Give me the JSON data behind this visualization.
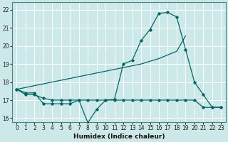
{
  "xlabel": "Humidex (Indice chaleur)",
  "background_color": "#cce8e8",
  "grid_color": "#ffffff",
  "line_color": "#006666",
  "xlim": [
    -0.5,
    23.5
  ],
  "ylim": [
    15.8,
    22.4
  ],
  "yticks": [
    16,
    17,
    18,
    19,
    20,
    21,
    22
  ],
  "xticks": [
    0,
    1,
    2,
    3,
    4,
    5,
    6,
    7,
    8,
    9,
    10,
    11,
    12,
    13,
    14,
    15,
    16,
    17,
    18,
    19,
    20,
    21,
    22,
    23
  ],
  "s1_x": [
    0,
    1,
    2,
    3,
    4,
    5,
    6,
    7,
    8,
    9,
    10,
    11,
    12,
    13,
    14,
    15,
    16,
    17,
    18,
    19,
    20,
    21,
    22,
    23
  ],
  "s1_y": [
    17.6,
    17.4,
    17.4,
    16.8,
    16.8,
    16.8,
    16.8,
    17.0,
    15.75,
    16.5,
    17.0,
    17.05,
    19.0,
    19.2,
    20.3,
    20.9,
    21.8,
    21.85,
    21.6,
    19.8,
    18.0,
    17.3,
    16.6,
    16.6
  ],
  "s2_x": [
    0,
    1,
    2,
    3,
    4,
    5,
    6,
    7,
    8,
    9,
    10,
    11,
    12,
    13,
    14,
    15,
    16,
    17,
    18,
    19,
    20,
    21,
    22,
    23
  ],
  "s2_y": [
    17.6,
    17.3,
    17.3,
    17.1,
    17.0,
    17.0,
    17.0,
    17.0,
    17.0,
    17.0,
    17.0,
    17.0,
    17.0,
    17.0,
    17.0,
    17.0,
    17.0,
    17.0,
    17.0,
    17.0,
    17.0,
    16.6,
    16.6,
    16.6
  ],
  "s3_x": [
    0,
    1,
    2,
    3,
    4,
    5,
    6,
    7,
    8,
    9,
    10,
    11,
    12,
    13,
    14,
    15,
    16,
    17,
    18,
    19
  ],
  "s3_y": [
    17.6,
    17.7,
    17.8,
    17.9,
    18.0,
    18.1,
    18.2,
    18.3,
    18.4,
    18.5,
    18.6,
    18.7,
    18.8,
    18.9,
    19.0,
    19.15,
    19.3,
    19.5,
    19.7,
    20.55
  ]
}
